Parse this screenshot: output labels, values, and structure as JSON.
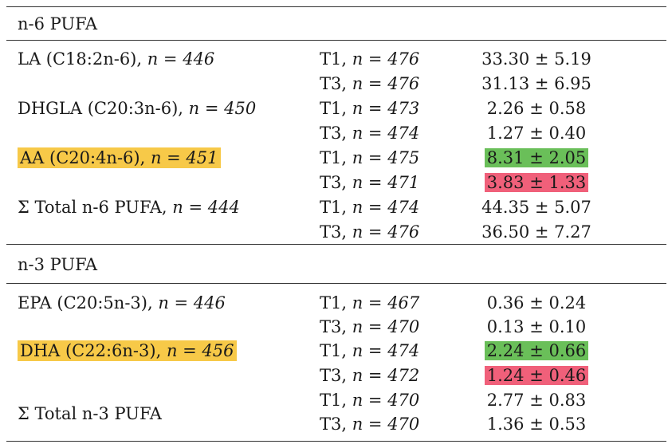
{
  "sections": [
    {
      "title": "n-6 PUFA",
      "groups": [
        {
          "label": "LA (C18:2n-6), ",
          "n": "n = 446",
          "highlight": "none",
          "rows": [
            {
              "time": "T1, ",
              "n": "n = 476",
              "value": "33.30 ± 5.19",
              "highlight": "none"
            },
            {
              "time": "T3, ",
              "n": "n = 476",
              "value": "31.13 ± 6.95",
              "highlight": "none"
            }
          ]
        },
        {
          "label": "DHGLA (C20:3n-6), ",
          "n": "n = 450",
          "highlight": "none",
          "rows": [
            {
              "time": "T1, ",
              "n": "n = 473",
              "value": "2.26 ± 0.58",
              "highlight": "none"
            },
            {
              "time": "T3, ",
              "n": "n = 474",
              "value": "1.27 ± 0.40",
              "highlight": "none"
            }
          ]
        },
        {
          "label": "AA (C20:4n-6), ",
          "n": "n = 451",
          "highlight": "yellow",
          "rows": [
            {
              "time": "T1, ",
              "n": "n = 475",
              "value": "8.31 ± 2.05",
              "highlight": "green"
            },
            {
              "time": "T3, ",
              "n": "n = 471",
              "value": "3.83 ± 1.33",
              "highlight": "red"
            }
          ]
        },
        {
          "label": "Σ Total n-6 PUFA, ",
          "n": "n = 444",
          "highlight": "none",
          "rows": [
            {
              "time": "T1, ",
              "n": "n = 474",
              "value": "44.35 ± 5.07",
              "highlight": "none"
            },
            {
              "time": "T3, ",
              "n": "n = 476",
              "value": "36.50 ± 7.27",
              "highlight": "none"
            }
          ]
        }
      ]
    },
    {
      "title": "n-3 PUFA",
      "groups": [
        {
          "label": "EPA (C20:5n-3), ",
          "n": "n = 446",
          "highlight": "none",
          "rows": [
            {
              "time": "T1, ",
              "n": "n = 467",
              "value": "0.36 ± 0.24",
              "highlight": "none"
            },
            {
              "time": "T3, ",
              "n": "n = 470",
              "value": "0.13 ± 0.10",
              "highlight": "none"
            }
          ]
        },
        {
          "label": "DHA (C22:6n-3), ",
          "n": "n = 456",
          "highlight": "yellow",
          "rows": [
            {
              "time": "T1, ",
              "n": "n = 474",
              "value": "2.24 ± 0.66",
              "highlight": "green"
            },
            {
              "time": "T3, ",
              "n": "n = 472",
              "value": "1.24 ± 0.46",
              "highlight": "red"
            }
          ]
        },
        {
          "label": "Σ Total n-3 PUFA",
          "n": "",
          "highlight": "none",
          "rows": [
            {
              "time": "T1, ",
              "n": "n = 470",
              "value": "2.77 ± 0.83",
              "highlight": "none"
            },
            {
              "time": "T3, ",
              "n": "n = 470",
              "value": "1.36 ± 0.53",
              "highlight": "none"
            }
          ]
        }
      ]
    }
  ],
  "colors": {
    "yellow": "#f7c948",
    "green": "#6abf59",
    "red": "#f0607a",
    "rule": "#333333"
  }
}
